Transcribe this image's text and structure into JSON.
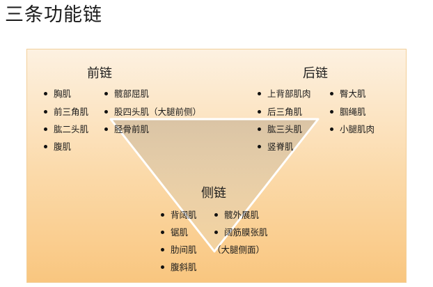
{
  "title": "三条功能链",
  "front_chain": {
    "title": "前链",
    "col1": [
      "胸肌",
      "前三角肌",
      "肱二头肌",
      "腹肌"
    ],
    "col2": [
      "髋部屈肌",
      "股四头肌（大腿前侧）",
      "胫骨前肌"
    ]
  },
  "back_chain": {
    "title": "后链",
    "col1": [
      "上背部肌肉",
      "后三角肌",
      "肱三头肌",
      "竖脊肌"
    ],
    "col2": [
      "臀大肌",
      "腘绳肌",
      "小腿肌肉"
    ]
  },
  "lateral_chain": {
    "title": "侧链",
    "col1": [
      "背阔肌",
      "锯肌",
      "肋间肌",
      "腹斜肌"
    ],
    "col2": [
      "髋外展肌",
      "阔筋膜张肌"
    ],
    "note": "（大腿侧面）"
  },
  "colors": {
    "panel_top": "#fdf1e1",
    "panel_bottom": "#f9c67f",
    "triangle_fill": "#dcc6a6",
    "triangle_edge": "#ffffff"
  }
}
